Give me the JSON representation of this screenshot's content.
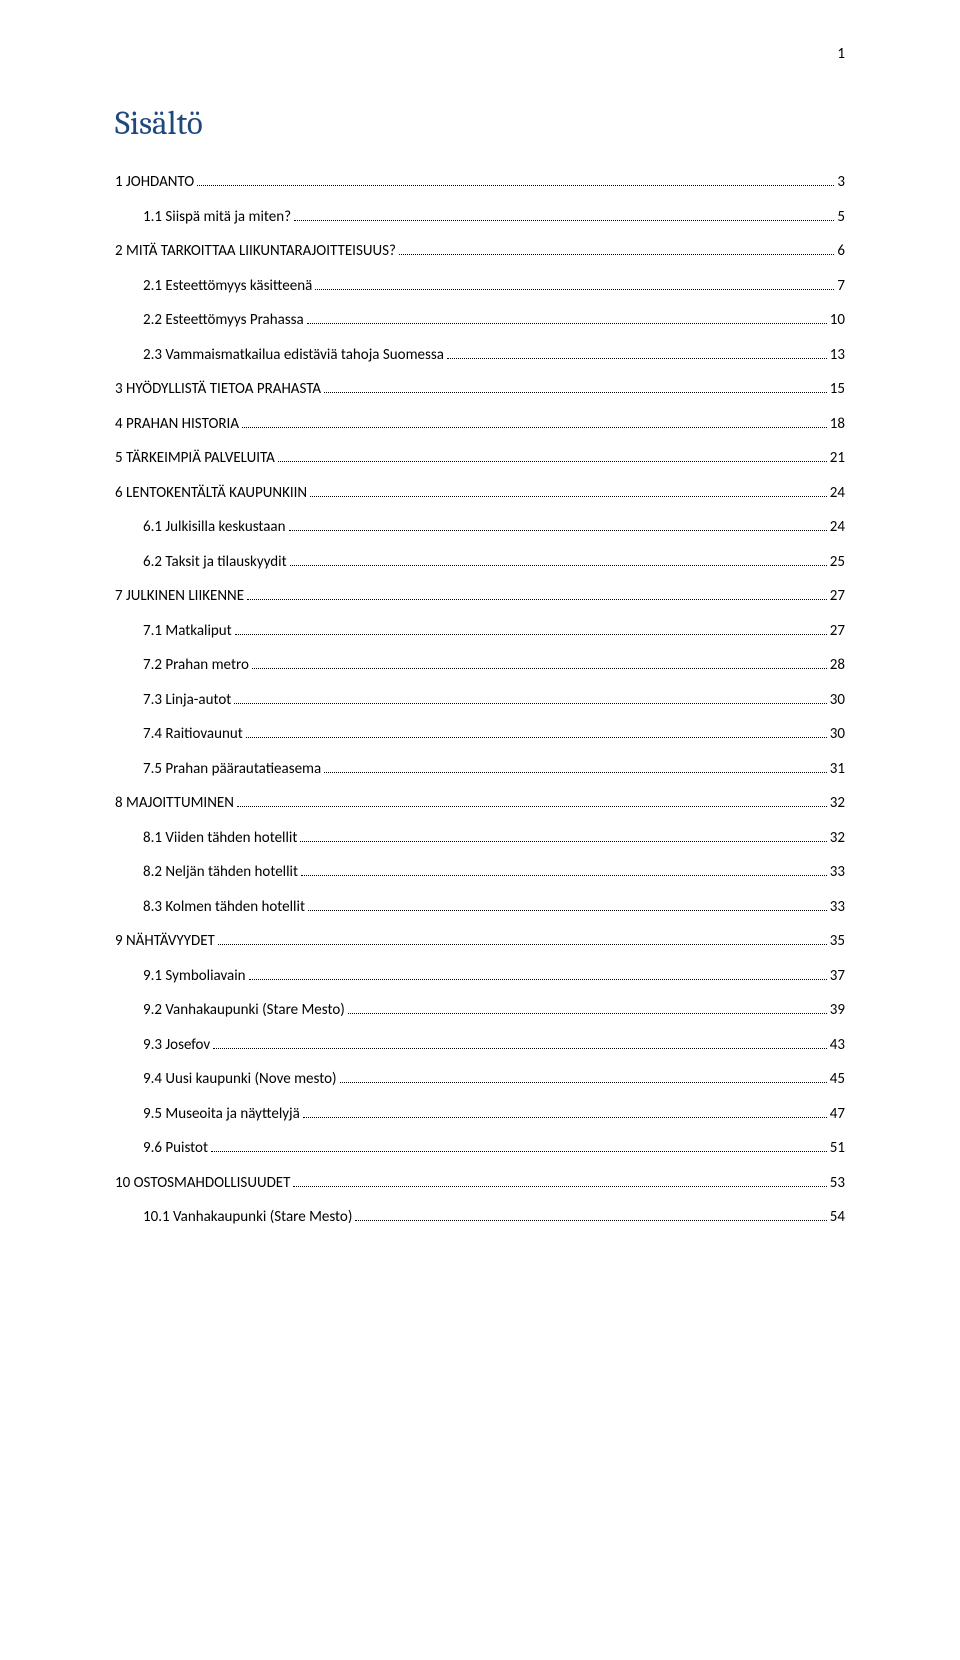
{
  "page_number_top": "1",
  "heading": "Sisältö",
  "heading_color": "#1f497d",
  "heading_fontsize_pt": 26,
  "body_fontsize_pt": 11,
  "text_color": "#000000",
  "background_color": "#ffffff",
  "dot_leader_color": "#000000",
  "toc_entries": [
    {
      "level": 1,
      "title": "1 JOHDANTO",
      "page": "3"
    },
    {
      "level": 2,
      "title": "1.1 Siispä mitä ja miten?",
      "page": "5"
    },
    {
      "level": 1,
      "title": "2 MITÄ TARKOITTAA LIIKUNTARAJOITTEISUUS?",
      "page": "6"
    },
    {
      "level": 2,
      "title": "2.1 Esteettömyys käsitteenä",
      "page": "7"
    },
    {
      "level": 2,
      "title": "2.2 Esteettömyys Prahassa",
      "page": "10"
    },
    {
      "level": 2,
      "title": "2.3 Vammaismatkailua edistäviä tahoja Suomessa",
      "page": "13"
    },
    {
      "level": 1,
      "title": "3 HYÖDYLLISTÄ TIETOA PRAHASTA",
      "page": "15"
    },
    {
      "level": 1,
      "title": "4 PRAHAN HISTORIA",
      "page": "18"
    },
    {
      "level": 1,
      "title": "5 TÄRKEIMPIÄ PALVELUITA",
      "page": "21"
    },
    {
      "level": 1,
      "title": "6 LENTOKENTÄLTÄ KAUPUNKIIN",
      "page": "24"
    },
    {
      "level": 2,
      "title": "6.1 Julkisilla keskustaan",
      "page": "24"
    },
    {
      "level": 2,
      "title": "6.2 Taksit ja tilauskyydit",
      "page": "25"
    },
    {
      "level": 1,
      "title": "7 JULKINEN LIIKENNE",
      "page": "27"
    },
    {
      "level": 2,
      "title": "7.1 Matkaliput",
      "page": "27"
    },
    {
      "level": 2,
      "title": "7.2 Prahan metro",
      "page": "28"
    },
    {
      "level": 2,
      "title": "7.3 Linja-autot",
      "page": "30"
    },
    {
      "level": 2,
      "title": "7.4 Raitiovaunut",
      "page": "30"
    },
    {
      "level": 2,
      "title": "7.5 Prahan päärautatieasema",
      "page": "31"
    },
    {
      "level": 1,
      "title": "8 MAJOITTUMINEN",
      "page": "32"
    },
    {
      "level": 2,
      "title": "8.1 Viiden tähden hotellit",
      "page": "32"
    },
    {
      "level": 2,
      "title": "8.2 Neljän tähden hotellit",
      "page": "33"
    },
    {
      "level": 2,
      "title": "8.3 Kolmen tähden hotellit",
      "page": "33"
    },
    {
      "level": 1,
      "title": "9 NÄHTÄVYYDET",
      "page": "35"
    },
    {
      "level": 2,
      "title": "9.1 Symboliavain",
      "page": "37"
    },
    {
      "level": 2,
      "title": "9.2 Vanhakaupunki (Stare Mesto)",
      "page": "39"
    },
    {
      "level": 2,
      "title": "9.3 Josefov",
      "page": "43"
    },
    {
      "level": 2,
      "title": "9.4 Uusi kaupunki (Nove mesto)",
      "page": "45"
    },
    {
      "level": 2,
      "title": "9.5 Museoita ja näyttelyjä",
      "page": "47"
    },
    {
      "level": 2,
      "title": "9.6 Puistot",
      "page": "51"
    },
    {
      "level": 1,
      "title": "10 OSTOSMAHDOLLISUUDET",
      "page": "53"
    },
    {
      "level": 2,
      "title": "10.1 Vanhakaupunki (Stare Mesto)",
      "page": "54"
    }
  ]
}
